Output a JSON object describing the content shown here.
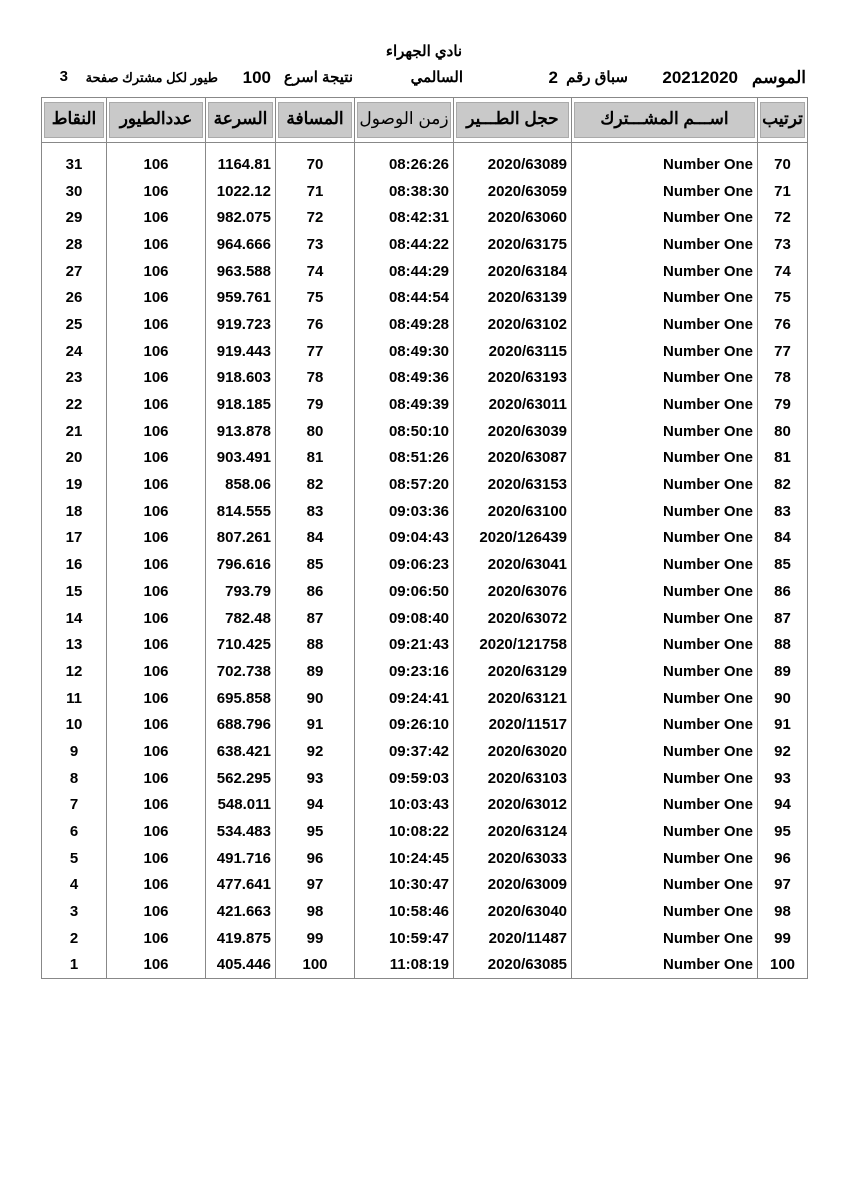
{
  "header": {
    "club": "نادي الجهراء",
    "season_label": "الموسم",
    "season": "20212020",
    "race_label": "سباق رقم",
    "race_number": "2",
    "location": "السالمي",
    "result_label": "نتيجة اسرع",
    "birds_count": "100",
    "per_page_label": "طيور لكل مشترك صفحة",
    "page": "3"
  },
  "columns": {
    "points": "النقاط",
    "birds": "عددالطيور",
    "speed": "السرعة",
    "distance": "المسافة",
    "arrival": "زمن الوصول",
    "ring": "حجل الطـــير",
    "name": "اســـم المشـــترك",
    "rank": "ترتيب"
  },
  "rows": [
    {
      "points": "31",
      "birds": "106",
      "speed": "1164.81",
      "distance": "70",
      "arrival": "08:26:26",
      "ring": "2020/63089",
      "name": "Number One",
      "rank": "70"
    },
    {
      "points": "30",
      "birds": "106",
      "speed": "1022.12",
      "distance": "71",
      "arrival": "08:38:30",
      "ring": "2020/63059",
      "name": "Number One",
      "rank": "71"
    },
    {
      "points": "29",
      "birds": "106",
      "speed": "982.075",
      "distance": "72",
      "arrival": "08:42:31",
      "ring": "2020/63060",
      "name": "Number One",
      "rank": "72"
    },
    {
      "points": "28",
      "birds": "106",
      "speed": "964.666",
      "distance": "73",
      "arrival": "08:44:22",
      "ring": "2020/63175",
      "name": "Number One",
      "rank": "73"
    },
    {
      "points": "27",
      "birds": "106",
      "speed": "963.588",
      "distance": "74",
      "arrival": "08:44:29",
      "ring": "2020/63184",
      "name": "Number One",
      "rank": "74"
    },
    {
      "points": "26",
      "birds": "106",
      "speed": "959.761",
      "distance": "75",
      "arrival": "08:44:54",
      "ring": "2020/63139",
      "name": "Number One",
      "rank": "75"
    },
    {
      "points": "25",
      "birds": "106",
      "speed": "919.723",
      "distance": "76",
      "arrival": "08:49:28",
      "ring": "2020/63102",
      "name": "Number One",
      "rank": "76"
    },
    {
      "points": "24",
      "birds": "106",
      "speed": "919.443",
      "distance": "77",
      "arrival": "08:49:30",
      "ring": "2020/63115",
      "name": "Number One",
      "rank": "77"
    },
    {
      "points": "23",
      "birds": "106",
      "speed": "918.603",
      "distance": "78",
      "arrival": "08:49:36",
      "ring": "2020/63193",
      "name": "Number One",
      "rank": "78"
    },
    {
      "points": "22",
      "birds": "106",
      "speed": "918.185",
      "distance": "79",
      "arrival": "08:49:39",
      "ring": "2020/63011",
      "name": "Number One",
      "rank": "79"
    },
    {
      "points": "21",
      "birds": "106",
      "speed": "913.878",
      "distance": "80",
      "arrival": "08:50:10",
      "ring": "2020/63039",
      "name": "Number One",
      "rank": "80"
    },
    {
      "points": "20",
      "birds": "106",
      "speed": "903.491",
      "distance": "81",
      "arrival": "08:51:26",
      "ring": "2020/63087",
      "name": "Number One",
      "rank": "81"
    },
    {
      "points": "19",
      "birds": "106",
      "speed": "858.06",
      "distance": "82",
      "arrival": "08:57:20",
      "ring": "2020/63153",
      "name": "Number One",
      "rank": "82"
    },
    {
      "points": "18",
      "birds": "106",
      "speed": "814.555",
      "distance": "83",
      "arrival": "09:03:36",
      "ring": "2020/63100",
      "name": "Number One",
      "rank": "83"
    },
    {
      "points": "17",
      "birds": "106",
      "speed": "807.261",
      "distance": "84",
      "arrival": "09:04:43",
      "ring": "2020/126439",
      "name": "Number One",
      "rank": "84"
    },
    {
      "points": "16",
      "birds": "106",
      "speed": "796.616",
      "distance": "85",
      "arrival": "09:06:23",
      "ring": "2020/63041",
      "name": "Number One",
      "rank": "85"
    },
    {
      "points": "15",
      "birds": "106",
      "speed": "793.79",
      "distance": "86",
      "arrival": "09:06:50",
      "ring": "2020/63076",
      "name": "Number One",
      "rank": "86"
    },
    {
      "points": "14",
      "birds": "106",
      "speed": "782.48",
      "distance": "87",
      "arrival": "09:08:40",
      "ring": "2020/63072",
      "name": "Number One",
      "rank": "87"
    },
    {
      "points": "13",
      "birds": "106",
      "speed": "710.425",
      "distance": "88",
      "arrival": "09:21:43",
      "ring": "2020/121758",
      "name": "Number One",
      "rank": "88"
    },
    {
      "points": "12",
      "birds": "106",
      "speed": "702.738",
      "distance": "89",
      "arrival": "09:23:16",
      "ring": "2020/63129",
      "name": "Number One",
      "rank": "89"
    },
    {
      "points": "11",
      "birds": "106",
      "speed": "695.858",
      "distance": "90",
      "arrival": "09:24:41",
      "ring": "2020/63121",
      "name": "Number One",
      "rank": "90"
    },
    {
      "points": "10",
      "birds": "106",
      "speed": "688.796",
      "distance": "91",
      "arrival": "09:26:10",
      "ring": "2020/11517",
      "name": "Number One",
      "rank": "91"
    },
    {
      "points": "9",
      "birds": "106",
      "speed": "638.421",
      "distance": "92",
      "arrival": "09:37:42",
      "ring": "2020/63020",
      "name": "Number One",
      "rank": "92"
    },
    {
      "points": "8",
      "birds": "106",
      "speed": "562.295",
      "distance": "93",
      "arrival": "09:59:03",
      "ring": "2020/63103",
      "name": "Number One",
      "rank": "93"
    },
    {
      "points": "7",
      "birds": "106",
      "speed": "548.011",
      "distance": "94",
      "arrival": "10:03:43",
      "ring": "2020/63012",
      "name": "Number One",
      "rank": "94"
    },
    {
      "points": "6",
      "birds": "106",
      "speed": "534.483",
      "distance": "95",
      "arrival": "10:08:22",
      "ring": "2020/63124",
      "name": "Number One",
      "rank": "95"
    },
    {
      "points": "5",
      "birds": "106",
      "speed": "491.716",
      "distance": "96",
      "arrival": "10:24:45",
      "ring": "2020/63033",
      "name": "Number One",
      "rank": "96"
    },
    {
      "points": "4",
      "birds": "106",
      "speed": "477.641",
      "distance": "97",
      "arrival": "10:30:47",
      "ring": "2020/63009",
      "name": "Number One",
      "rank": "97"
    },
    {
      "points": "3",
      "birds": "106",
      "speed": "421.663",
      "distance": "98",
      "arrival": "10:58:46",
      "ring": "2020/63040",
      "name": "Number One",
      "rank": "98"
    },
    {
      "points": "2",
      "birds": "106",
      "speed": "419.875",
      "distance": "99",
      "arrival": "10:59:47",
      "ring": "2020/11487",
      "name": "Number One",
      "rank": "99"
    },
    {
      "points": "1",
      "birds": "106",
      "speed": "405.446",
      "distance": "100",
      "arrival": "11:08:19",
      "ring": "2020/63085",
      "name": "Number One",
      "rank": "100"
    }
  ]
}
